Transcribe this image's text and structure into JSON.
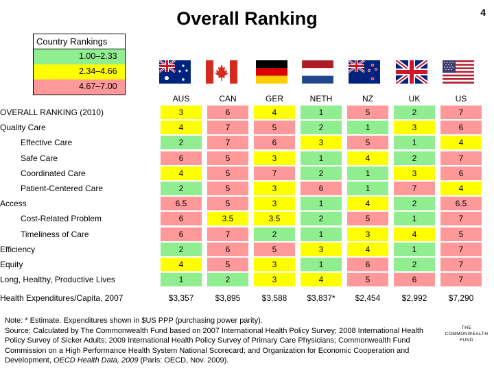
{
  "page_title": "Overall Ranking",
  "page_number": "4",
  "legend": {
    "title": "Country Rankings",
    "items": [
      {
        "label": "1.00–2.33",
        "color": "#90ee90"
      },
      {
        "label": "2.34–4.66",
        "color": "#ffff00"
      },
      {
        "label": "4.67–7.00",
        "color": "#ff9999"
      }
    ]
  },
  "countries": [
    "AUS",
    "CAN",
    "GER",
    "NETH",
    "NZ",
    "UK",
    "US"
  ],
  "rows": [
    {
      "label": "OVERALL RANKING (2010)",
      "indent": false,
      "values": [
        "3",
        "6",
        "4",
        "1",
        "5",
        "2",
        "7"
      ],
      "colors": [
        "y",
        "r",
        "y",
        "g",
        "r",
        "g",
        "r"
      ]
    },
    {
      "label": "Quality Care",
      "indent": false,
      "values": [
        "4",
        "7",
        "5",
        "2",
        "1",
        "3",
        "6"
      ],
      "colors": [
        "y",
        "r",
        "r",
        "g",
        "g",
        "y",
        "r"
      ]
    },
    {
      "label": "Effective Care",
      "indent": true,
      "values": [
        "2",
        "7",
        "6",
        "3",
        "5",
        "1",
        "4"
      ],
      "colors": [
        "g",
        "r",
        "r",
        "y",
        "r",
        "g",
        "y"
      ]
    },
    {
      "label": "Safe Care",
      "indent": true,
      "values": [
        "6",
        "5",
        "3",
        "1",
        "4",
        "2",
        "7"
      ],
      "colors": [
        "r",
        "r",
        "y",
        "g",
        "y",
        "g",
        "r"
      ]
    },
    {
      "label": "Coordinated Care",
      "indent": true,
      "values": [
        "4",
        "5",
        "7",
        "2",
        "1",
        "3",
        "6"
      ],
      "colors": [
        "y",
        "r",
        "r",
        "g",
        "g",
        "y",
        "r"
      ]
    },
    {
      "label": "Patient-Centered Care",
      "indent": true,
      "values": [
        "2",
        "5",
        "3",
        "6",
        "1",
        "7",
        "4"
      ],
      "colors": [
        "g",
        "r",
        "y",
        "r",
        "g",
        "r",
        "y"
      ]
    },
    {
      "label": "Access",
      "indent": false,
      "values": [
        "6.5",
        "5",
        "3",
        "1",
        "4",
        "2",
        "6.5"
      ],
      "colors": [
        "r",
        "r",
        "y",
        "g",
        "y",
        "g",
        "r"
      ]
    },
    {
      "label": "Cost-Related Problem",
      "indent": true,
      "values": [
        "6",
        "3.5",
        "3.5",
        "2",
        "5",
        "1",
        "7"
      ],
      "colors": [
        "r",
        "y",
        "y",
        "g",
        "r",
        "g",
        "r"
      ]
    },
    {
      "label": "Timeliness of Care",
      "indent": true,
      "values": [
        "6",
        "7",
        "2",
        "1",
        "3",
        "4",
        "5"
      ],
      "colors": [
        "r",
        "r",
        "g",
        "g",
        "y",
        "y",
        "r"
      ]
    },
    {
      "label": "Efficiency",
      "indent": false,
      "values": [
        "2",
        "6",
        "5",
        "3",
        "4",
        "1",
        "7"
      ],
      "colors": [
        "g",
        "r",
        "r",
        "y",
        "y",
        "g",
        "r"
      ]
    },
    {
      "label": "Equity",
      "indent": false,
      "values": [
        "4",
        "5",
        "3",
        "1",
        "6",
        "2",
        "7"
      ],
      "colors": [
        "y",
        "r",
        "y",
        "g",
        "r",
        "g",
        "r"
      ]
    },
    {
      "label": "Long, Healthy, Productive Lives",
      "indent": false,
      "values": [
        "1",
        "2",
        "3",
        "4",
        "5",
        "6",
        "7"
      ],
      "colors": [
        "g",
        "g",
        "y",
        "y",
        "r",
        "r",
        "r"
      ]
    },
    {
      "label": "Health Expenditures/Capita, 2007",
      "indent": false,
      "values": [
        "$3,357",
        "$3,895",
        "$3,588",
        "$3,837*",
        "$2,454",
        "$2,992",
        "$7,290"
      ],
      "colors": [
        "",
        "",
        "",
        "",
        "",
        "",
        ""
      ]
    }
  ],
  "note": {
    "line1": "Note: * Estimate. Expenditures shown in $US PPP (purchasing power parity).",
    "line2": "Source: Calculated by The Commonwealth Fund based on 2007 International Health Policy Survey; 2008 International Health Policy Survey of Sicker Adults; 2009 International Health Policy Survey of Primary Care Physicians; Commonwealth Fund Commission on a High Performance Health System National Scorecard; and Organization for Economic Cooperation and Development, ",
    "italic": "OECD Health Data, 2009",
    "line2_end": " (Paris: OECD, Nov. 2009)."
  },
  "logo": {
    "line1": "THE",
    "line2": "COMMONWEALTH",
    "line3": "FUND"
  },
  "flag_icons": [
    "australia-flag-icon",
    "canada-flag-icon",
    "germany-flag-icon",
    "netherlands-flag-icon",
    "new-zealand-flag-icon",
    "uk-flag-icon",
    "us-flag-icon"
  ]
}
